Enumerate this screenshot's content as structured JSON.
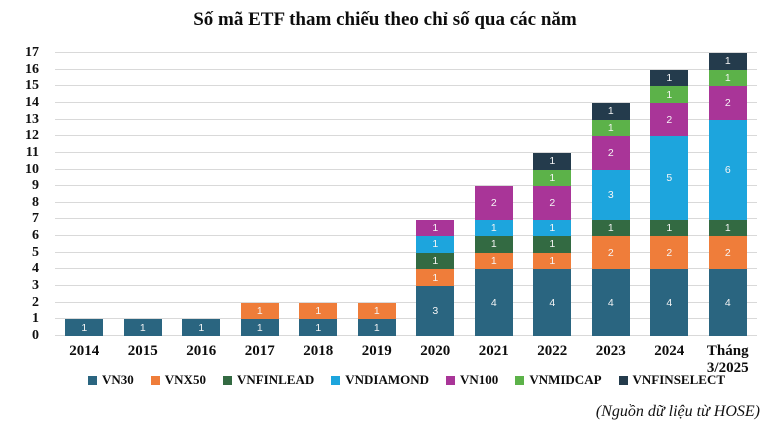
{
  "source_note": "(Nguồn dữ liệu từ HOSE)",
  "colors": {
    "gridline": "#d9d9d9",
    "segment_label_text": "#ffffff",
    "axis_text": "#111111"
  },
  "chart_data": {
    "type": "bar",
    "stacked": true,
    "title": "Số mã ETF tham chiếu theo chỉ số qua các năm",
    "xlabel": "",
    "ylabel": "",
    "ylim": [
      0,
      17
    ],
    "ytick_step": 1,
    "grid": "horizontal",
    "legend_position": "bottom",
    "bar_value_labels": true,
    "categories": [
      "2014",
      "2015",
      "2016",
      "2017",
      "2018",
      "2019",
      "2020",
      "2021",
      "2022",
      "2023",
      "2024",
      "Tháng 3/2025"
    ],
    "series": [
      {
        "name": "VN30",
        "color": "#2a6580",
        "values": [
          1,
          1,
          1,
          1,
          1,
          1,
          3,
          4,
          4,
          4,
          4,
          4
        ]
      },
      {
        "name": "VNX50",
        "color": "#ef7d3a",
        "values": [
          0,
          0,
          0,
          1,
          1,
          1,
          1,
          1,
          1,
          2,
          2,
          2
        ]
      },
      {
        "name": "VNFINLEAD",
        "color": "#336a42",
        "values": [
          0,
          0,
          0,
          0,
          0,
          0,
          1,
          1,
          1,
          1,
          1,
          1
        ]
      },
      {
        "name": "VNDIAMOND",
        "color": "#1da5dd",
        "values": [
          0,
          0,
          0,
          0,
          0,
          0,
          1,
          1,
          1,
          3,
          5,
          6
        ]
      },
      {
        "name": "VN100",
        "color": "#a93598",
        "values": [
          0,
          0,
          0,
          0,
          0,
          0,
          1,
          2,
          2,
          2,
          2,
          2
        ]
      },
      {
        "name": "VNMIDCAP",
        "color": "#5cb249",
        "values": [
          0,
          0,
          0,
          0,
          0,
          0,
          0,
          0,
          1,
          1,
          1,
          1
        ]
      },
      {
        "name": "VNFINSELECT",
        "color": "#243b4c",
        "values": [
          0,
          0,
          0,
          0,
          0,
          0,
          0,
          0,
          1,
          1,
          1,
          1
        ]
      }
    ],
    "totals": [
      1,
      1,
      1,
      2,
      2,
      2,
      7,
      9,
      11,
      14,
      16,
      17
    ]
  }
}
